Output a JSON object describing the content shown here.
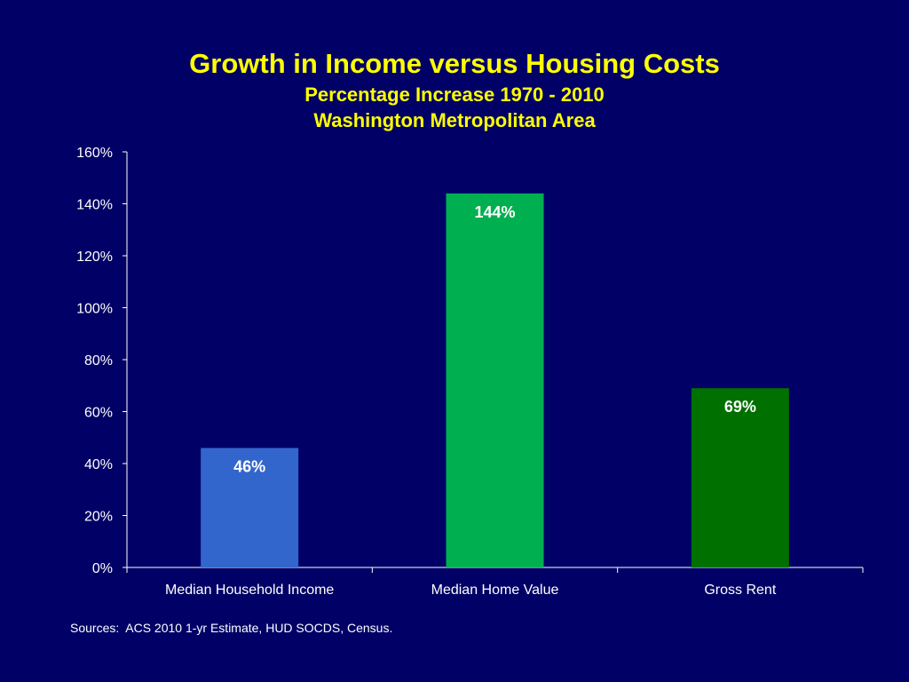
{
  "slide": {
    "background_color": "#000066",
    "title_color": "#ffff00"
  },
  "chart_data": {
    "type": "bar",
    "title": "Growth in Income versus Housing Costs",
    "subtitle": "Percentage Increase 1970 - 2010",
    "subtitle2": "Washington Metropolitan Area",
    "categories": [
      "Median Household Income",
      "Median Home Value",
      "Gross Rent"
    ],
    "values": [
      46,
      144,
      69
    ],
    "data_labels": [
      "46%",
      "144%",
      "69%"
    ],
    "bar_colors": [
      "#3366cc",
      "#00b050",
      "#007000"
    ],
    "ylim": [
      0,
      160
    ],
    "y_ticks": [
      0,
      20,
      40,
      60,
      80,
      100,
      120,
      140,
      160
    ],
    "y_tick_labels": [
      "0%",
      "20%",
      "40%",
      "60%",
      "80%",
      "100%",
      "120%",
      "140%",
      "160%"
    ],
    "xlabel": "",
    "ylabel": "",
    "grid": false,
    "legend": "none"
  },
  "source_text": "Sources:  ACS 2010 1-yr Estimate, HUD SOCDS, Census."
}
